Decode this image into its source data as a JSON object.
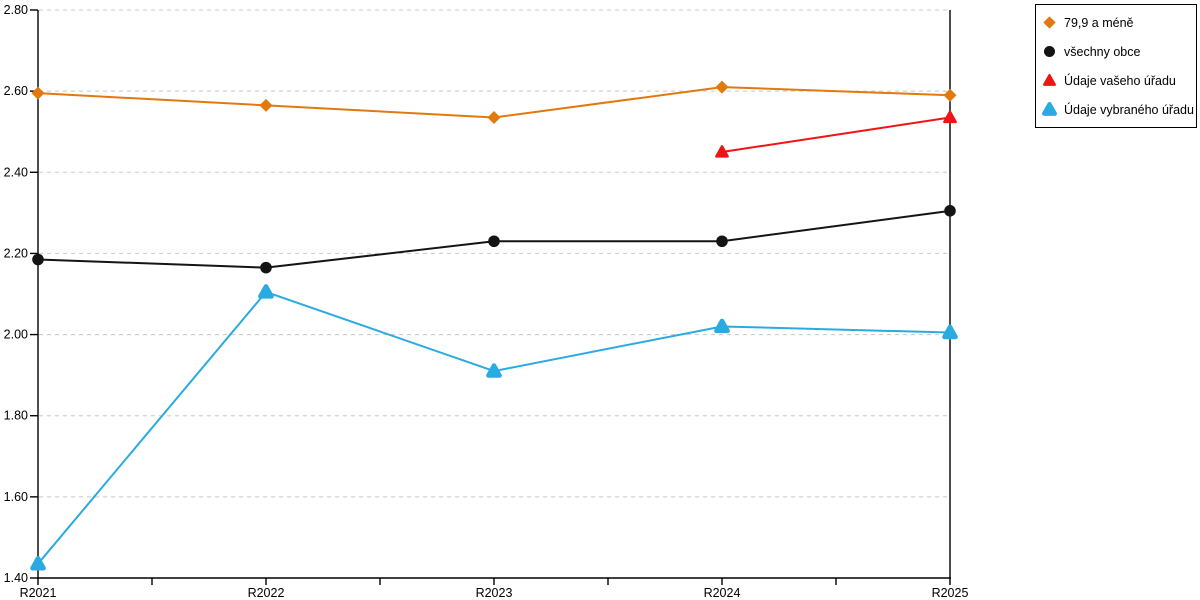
{
  "chart_data": {
    "type": "line",
    "title": "",
    "xlabel": "",
    "ylabel": "",
    "categories": [
      "R2021",
      "R2022",
      "R2023",
      "R2024",
      "R2025"
    ],
    "series": [
      {
        "name": "79,9 a méně",
        "color": "#E2790F",
        "marker": "diamond",
        "values": [
          2.595,
          2.565,
          2.535,
          2.61,
          2.59
        ]
      },
      {
        "name": "všechny obce",
        "color": "#141414",
        "marker": "circle",
        "values": [
          2.185,
          2.165,
          2.23,
          2.23,
          2.305
        ]
      },
      {
        "name": "Údaje vašeho úřadu",
        "color": "#F01414",
        "marker": "triangle",
        "values": [
          null,
          null,
          null,
          2.45,
          2.535
        ]
      },
      {
        "name": "Údaje vybraného úřadu",
        "color": "#29ABE2",
        "marker": "triangle-rounded",
        "values": [
          1.435,
          2.105,
          1.91,
          2.02,
          2.005
        ]
      }
    ],
    "ylim": [
      1.4,
      2.8
    ],
    "ytick_step": 0.2,
    "ytick_labels": [
      "2.80",
      "2.60",
      "2.40",
      "2.20",
      "2.00",
      "1.80",
      "1.60",
      "1.40"
    ],
    "grid": "horizontal-dashed",
    "grid_color": "#C8C8C8",
    "axis_color": "#000000",
    "background": "#FFFFFF",
    "legend_position": "top-right",
    "x_minor_ticks_per_interval": 1
  }
}
